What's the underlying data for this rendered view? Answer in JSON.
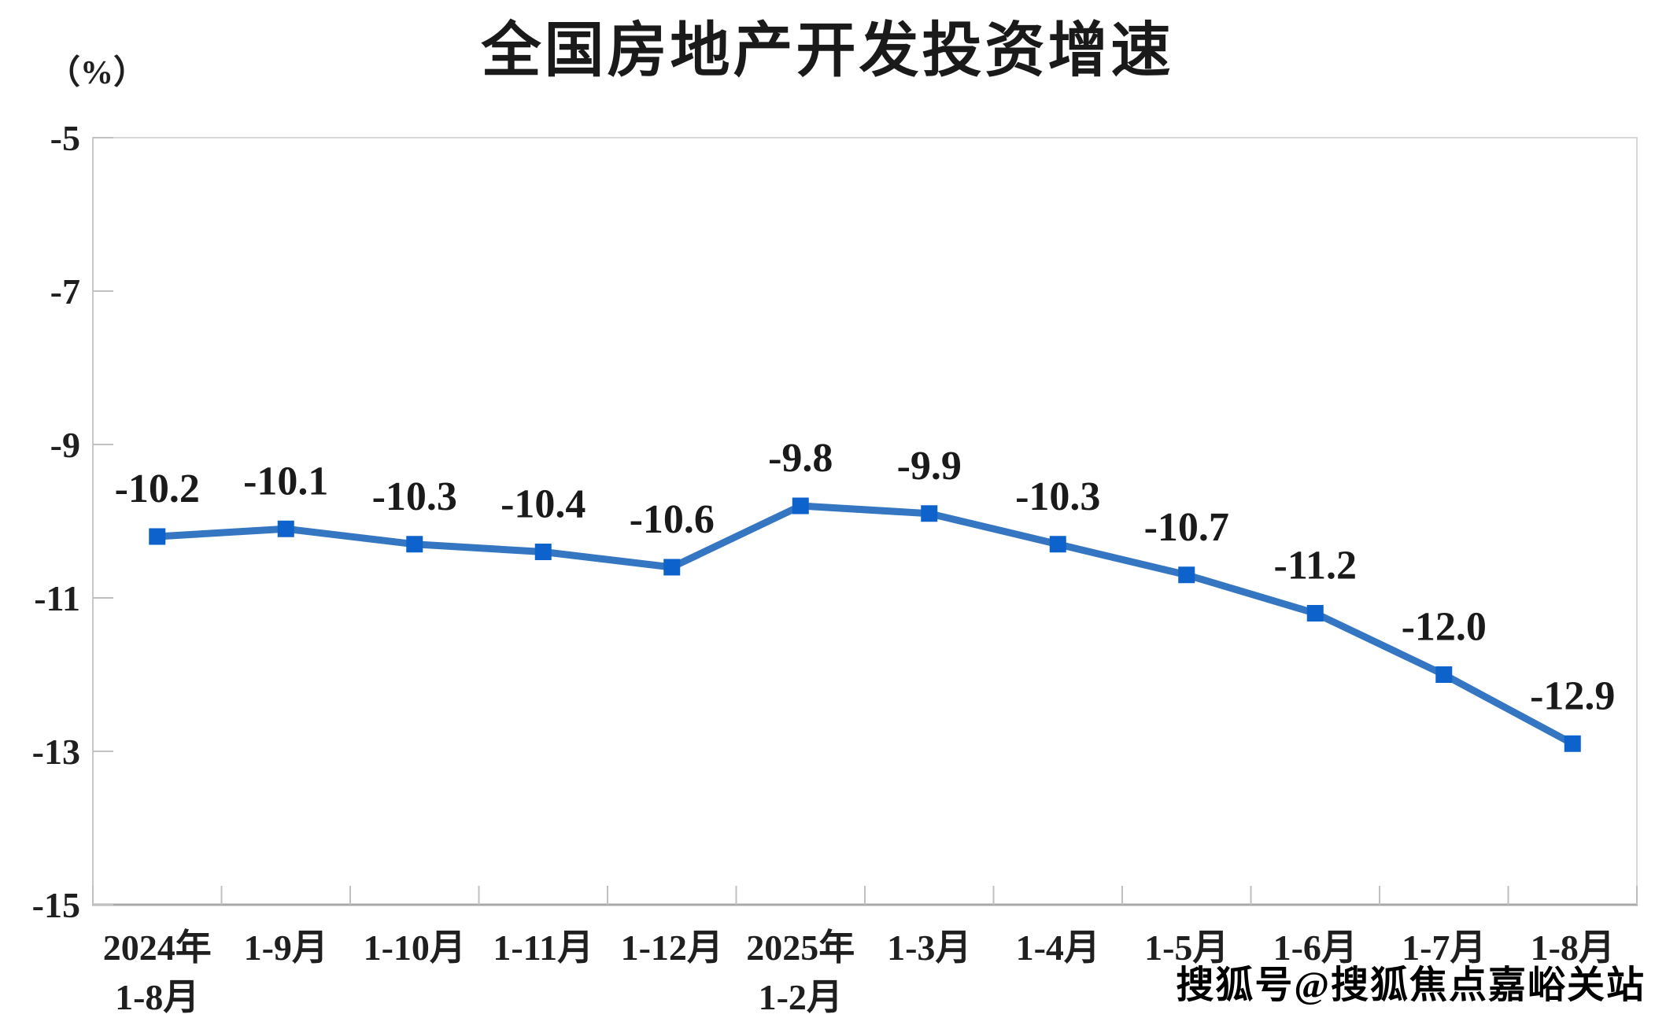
{
  "title": "全国房地产开发投资增速",
  "y_axis_unit_label": "（%）",
  "watermark": "搜狐号@搜狐焦点嘉峪关站",
  "colors": {
    "line": "#3476C2",
    "marker": "#0E62CB",
    "plot_border": "#D8D8D8",
    "axis_line": "#A8A8A8",
    "tick": "#C0C0C0",
    "text": "#1F1F1F"
  },
  "chart_data": {
    "type": "line",
    "title": "全国房地产开发投资增速",
    "unit": "（%）",
    "categories": [
      [
        "2024年",
        "1-8月"
      ],
      [
        "1-9月"
      ],
      [
        "1-10月"
      ],
      [
        "1-11月"
      ],
      [
        "1-12月"
      ],
      [
        "2025年",
        "1-2月"
      ],
      [
        "1-3月"
      ],
      [
        "1-4月"
      ],
      [
        "1-5月"
      ],
      [
        "1-6月"
      ],
      [
        "1-7月"
      ],
      [
        "1-8月"
      ]
    ],
    "values": [
      -10.2,
      -10.1,
      -10.3,
      -10.4,
      -10.6,
      -9.8,
      -9.9,
      -10.3,
      -10.7,
      -11.2,
      -12.0,
      -12.9
    ],
    "data_labels": [
      "-10.2",
      "-10.1",
      "-10.3",
      "-10.4",
      "-10.6",
      "-9.8",
      "-9.9",
      "-10.3",
      "-10.7",
      "-11.2",
      "-12.0",
      "-12.9"
    ],
    "series_name": "全国房地产开发投资增速",
    "y_ticks": [
      -5,
      -7,
      -9,
      -11,
      -13,
      -15
    ],
    "ylim": [
      -15,
      -5
    ],
    "xlabel": "",
    "ylabel": "（%）",
    "grid": false,
    "legend": false,
    "marker": "square"
  }
}
